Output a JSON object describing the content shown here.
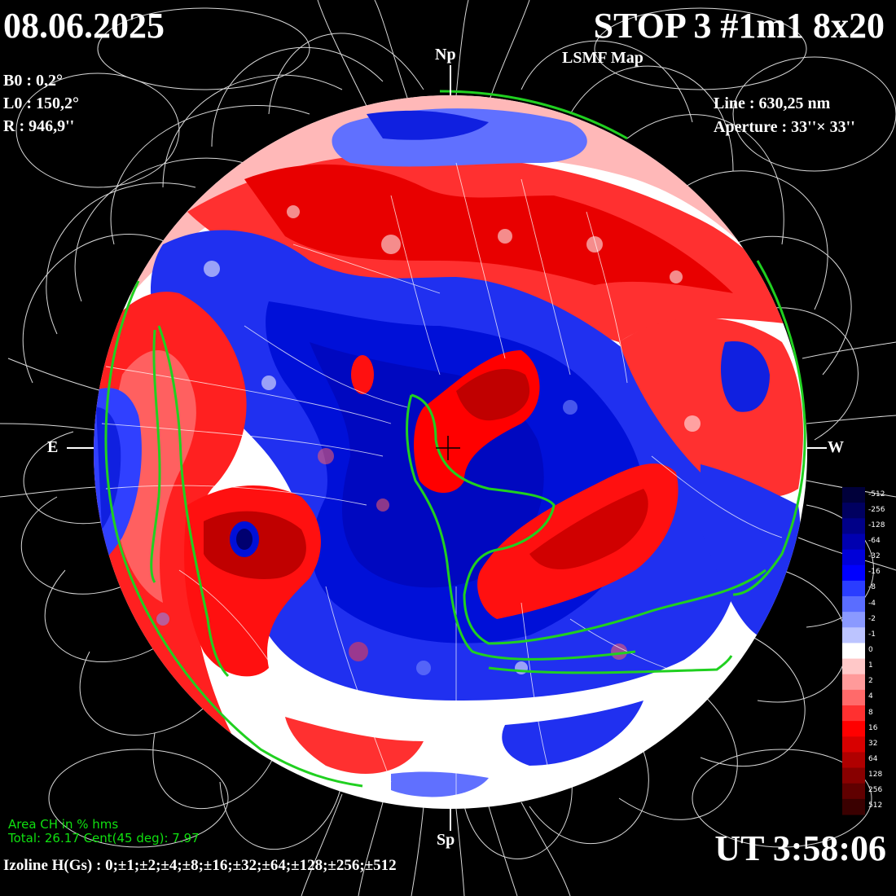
{
  "header": {
    "date": "08.06.2025",
    "stop_title": "STOP 3 #1m1 8x20",
    "map_title": "LSMF  Map"
  },
  "params": {
    "b0": "B0 : 0,2°",
    "l0": "L0 : 150,2°",
    "r": "R  : 946,9''",
    "line": "Line :  630,25 nm",
    "aperture": "Aperture : 33''× 33''"
  },
  "directions": {
    "north": "Np",
    "south": "Sp",
    "east": "E",
    "west": "W"
  },
  "coronal_hole": {
    "title": "Area CH in % hms",
    "total": "Total: 26.17    Cent(45 deg): 7.97"
  },
  "isoline": "Izoline H(Gs) : 0;±1;±2;±4;±8;±16;±32;±64;±128;±256;±512",
  "time": "UT 3:58:06",
  "colorbar": {
    "labels": [
      "-512",
      "-256",
      "-128",
      "-64",
      "-32",
      "-16",
      "-8",
      "-4",
      "-2",
      "-1",
      "0",
      "1",
      "2",
      "4",
      "8",
      "16",
      "32",
      "64",
      "128",
      "256",
      "512"
    ],
    "colors": [
      "#00003a",
      "#000060",
      "#000088",
      "#0000b0",
      "#0000d8",
      "#0000ff",
      "#2a3dff",
      "#5a6dff",
      "#8a99ff",
      "#bcc4ff",
      "#ffffff",
      "#ffc8c8",
      "#ff9a9a",
      "#ff6a6a",
      "#ff3030",
      "#ff0000",
      "#d80000",
      "#b00000",
      "#880000",
      "#600000",
      "#3a0000"
    ]
  },
  "colors": {
    "positive": "#ff1010",
    "negative": "#0020e0",
    "neutral": "#ffffff",
    "ch_boundary": "#20d020"
  }
}
